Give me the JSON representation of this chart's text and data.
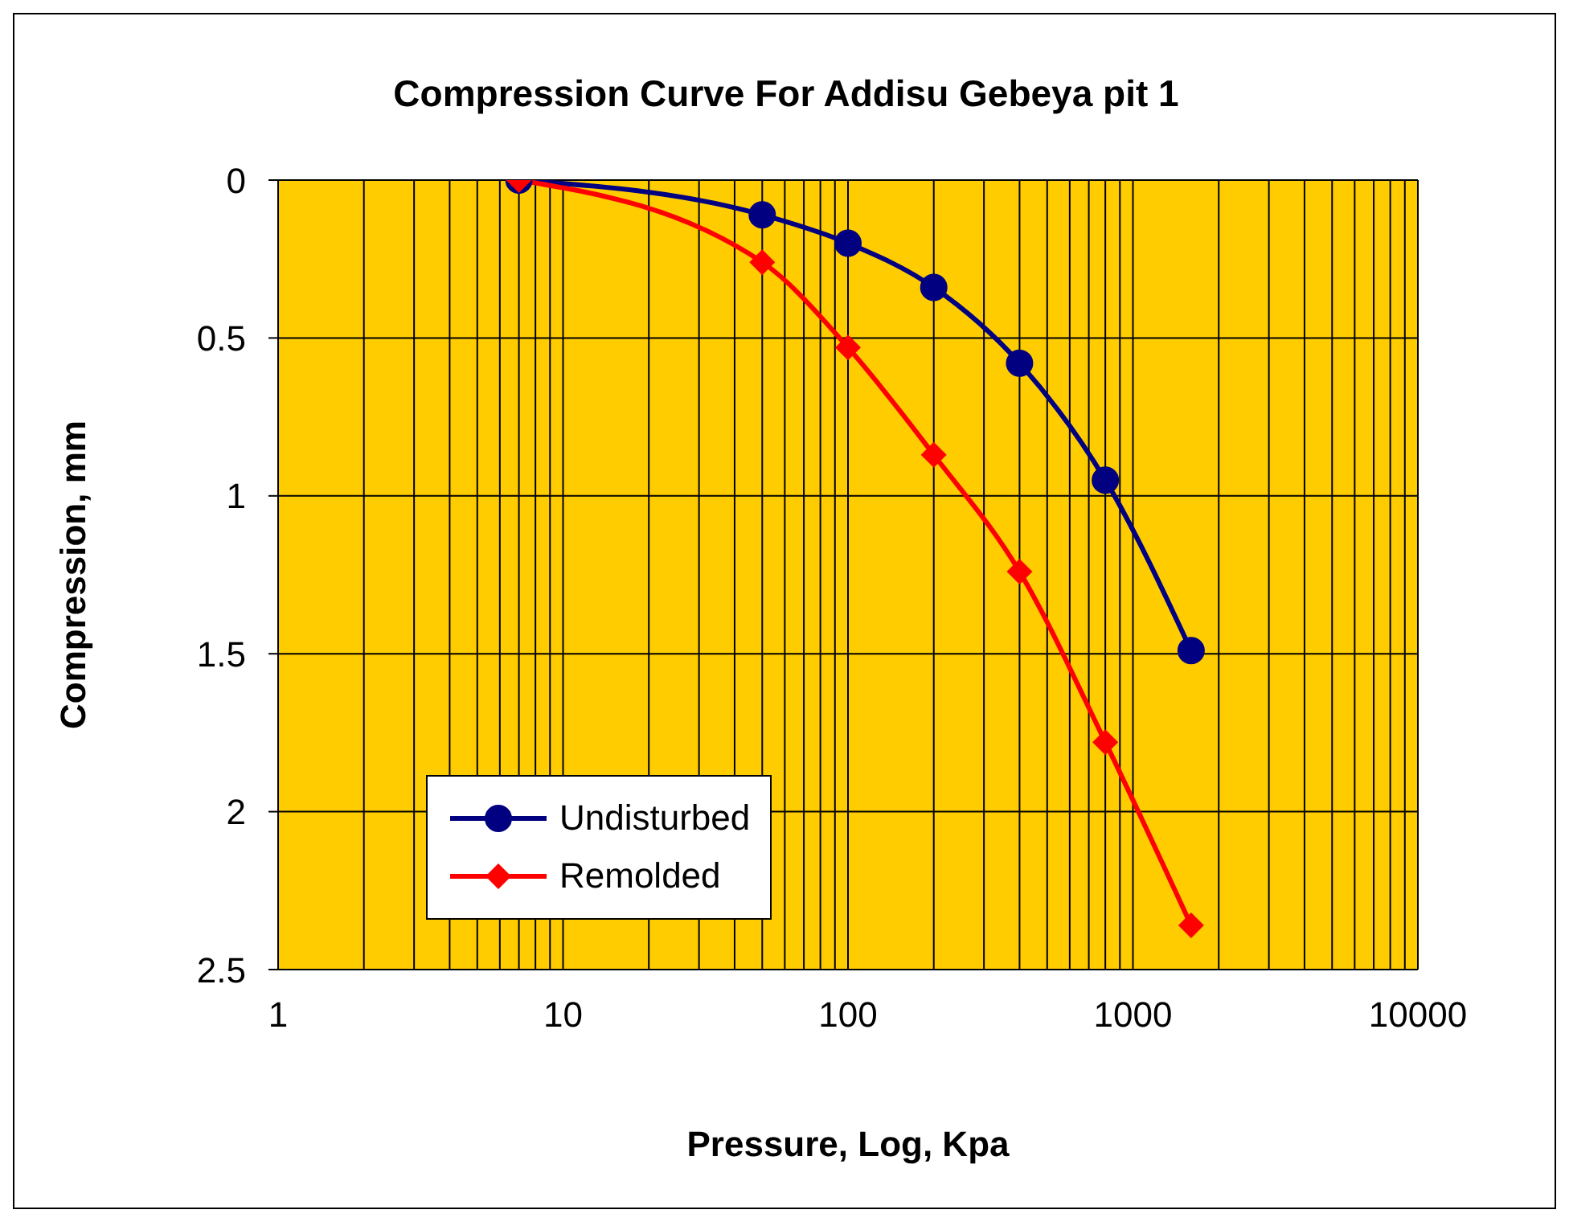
{
  "chart_data": {
    "type": "line",
    "title": "Compression Curve For Addisu Gebeya pit 1",
    "xlabel": "Pressure, Log, Kpa",
    "ylabel": "Compression, mm",
    "x": [
      7,
      50,
      100,
      200,
      400,
      800,
      1600
    ],
    "series": [
      {
        "name": "Undisturbed",
        "color": "#000080",
        "marker": "circle",
        "values": [
          0,
          0.11,
          0.2,
          0.34,
          0.58,
          0.95,
          1.49
        ]
      },
      {
        "name": "Remolded",
        "color": "#ff0000",
        "marker": "diamond",
        "values": [
          0,
          0.26,
          0.53,
          0.87,
          1.24,
          1.78,
          2.36
        ]
      }
    ],
    "log": "x",
    "xlim": [
      1,
      10000
    ],
    "xticks": [
      1,
      {
        "value": 2,
        "label": null
      },
      {
        "value": 3,
        "label": null
      },
      {
        "value": 4,
        "label": null
      },
      {
        "value": 5,
        "label": null
      },
      {
        "value": 6,
        "label": null
      },
      {
        "value": 7,
        "label": null
      },
      {
        "value": 8,
        "label": null
      },
      {
        "value": 9,
        "label": null
      },
      10,
      {
        "value": 20,
        "label": null
      },
      {
        "value": 30,
        "label": null
      },
      {
        "value": 40,
        "label": null
      },
      {
        "value": 50,
        "label": null
      },
      {
        "value": 60,
        "label": null
      },
      {
        "value": 70,
        "label": null
      },
      {
        "value": 80,
        "label": null
      },
      {
        "value": 90,
        "label": null
      },
      100,
      {
        "value": 200,
        "label": null
      },
      {
        "value": 300,
        "label": null
      },
      {
        "value": 400,
        "label": null
      },
      {
        "value": 500,
        "label": null
      },
      {
        "value": 600,
        "label": null
      },
      {
        "value": 700,
        "label": null
      },
      {
        "value": 800,
        "label": null
      },
      {
        "value": 900,
        "label": null
      },
      1000,
      {
        "value": 2000,
        "label": null
      },
      {
        "value": 3000,
        "label": null
      },
      {
        "value": 4000,
        "label": null
      },
      {
        "value": 5000,
        "label": null
      },
      {
        "value": 6000,
        "label": null
      },
      {
        "value": 7000,
        "label": null
      },
      {
        "value": 8000,
        "label": null
      },
      {
        "value": 9000,
        "label": null
      },
      10000
    ],
    "ylim": [
      2.5,
      0
    ],
    "yticks": [
      0,
      0.5,
      1,
      1.5,
      2,
      2.5
    ],
    "grid": true,
    "legend": "bottom left",
    "line_style": "solid"
  }
}
